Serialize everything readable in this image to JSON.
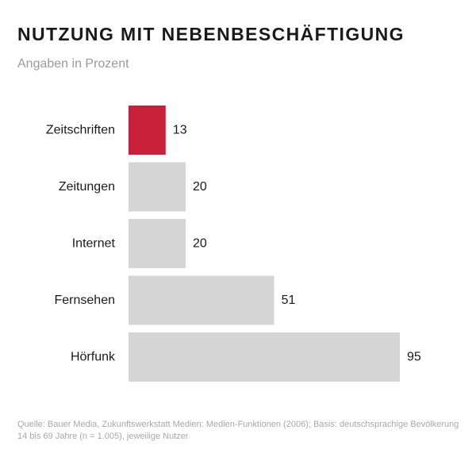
{
  "header": {
    "title": "NUTZUNG MIT NEBENBESCHÄFTIGUNG",
    "subtitle": "Angaben in Prozent"
  },
  "footnote": "Quelle: Bauer Media, Zukunftswerkstatt Medien: Medien-Funktionen (2006); Basis: deutschsprachige Bevölkerung 14 bis 69 Jahre (n = 1.005), jeweilige Nutzer",
  "colors": {
    "highlight": "#c8203a",
    "bar": "#d4d5d4",
    "label": "#1a1a1a"
  },
  "chart_data": {
    "type": "bar",
    "orientation": "horizontal",
    "title": "NUTZUNG MIT NEBENBESCHÄFTIGUNG",
    "subtitle": "Angaben in Prozent",
    "xlabel": "",
    "ylabel": "",
    "xlim": [
      0,
      100
    ],
    "grid": false,
    "categories": [
      "Zeitschriften",
      "Zeitungen",
      "Internet",
      "Fernsehen",
      "Hörfunk"
    ],
    "values": [
      13,
      20,
      20,
      51,
      95
    ],
    "highlighted_category": "Zeitschriften"
  }
}
